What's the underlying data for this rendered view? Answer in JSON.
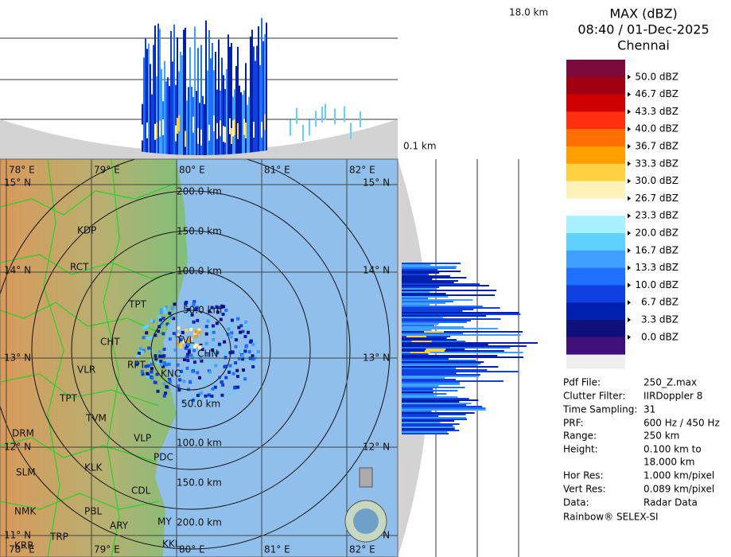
{
  "header": {
    "title": "MAX (dBZ)",
    "datetime": "08:40 / 01-Dec-2025",
    "location": "Chennai"
  },
  "top_height_label": "18.0 km",
  "side_height_label": "0.1 km",
  "legend": {
    "labels": [
      "50.0 dBZ",
      "46.7 dBZ",
      "43.3 dBZ",
      "40.0 dBZ",
      "36.7 dBZ",
      "33.3 dBZ",
      "30.0 dBZ",
      "26.7 dBZ",
      "23.3 dBZ",
      "20.0 dBZ",
      "16.7 dBZ",
      "13.3 dBZ",
      "10.0 dBZ",
      "6.7 dBZ",
      "3.3 dBZ",
      "0.0 dBZ"
    ],
    "colors": [
      "#7a0a3c",
      "#a00010",
      "#d00000",
      "#ff3010",
      "#ff7000",
      "#ffa000",
      "#ffd040",
      "#fff2b8",
      "#ffffff",
      "#a8f0ff",
      "#60d0ff",
      "#40a0ff",
      "#2070ff",
      "#1040e0",
      "#0020b0",
      "#10107a",
      "#40107a"
    ]
  },
  "info": [
    [
      "Pdf File:",
      "250_Z.max"
    ],
    [
      "Clutter Filter:",
      "IIRDoppler 8"
    ],
    [
      "Time Sampling:",
      "31"
    ],
    [
      "PRF:",
      "600 Hz / 450 Hz"
    ],
    [
      "Range:",
      "250 km"
    ],
    [
      "Height:",
      "0.100 km to 18.000 km"
    ],
    [
      "Hor Res:",
      "1.000 km/pixel"
    ],
    [
      "Vert Res:",
      "0.089 km/pixel"
    ],
    [
      "Data:",
      "Radar Data"
    ]
  ],
  "credit": "Rainbow® SELEX-SI",
  "map": {
    "lon_labels": [
      "78° E",
      "79° E",
      "80° E",
      "81° E",
      "82° E"
    ],
    "lat_labels": [
      "15° N",
      "14° N",
      "13° N",
      "12° N",
      "11° N"
    ],
    "range_labels": [
      "50.0 km",
      "100.0 km",
      "150.0 km",
      "200.0 km",
      "50.0 km",
      "100.0 km",
      "150.0 km",
      "200.0 km"
    ],
    "cities": [
      "KDP",
      "RCT",
      "TPT",
      "CHT",
      "TVL",
      "CHN",
      "VLR",
      "RPT",
      "KNC",
      "TPT",
      "TVM",
      "DRM",
      "VLP",
      "PDC",
      "SLM",
      "KLK",
      "CDL",
      "NMK",
      "PBL",
      "ARY",
      "MY",
      "TRP",
      "KRR",
      "KKL"
    ]
  }
}
